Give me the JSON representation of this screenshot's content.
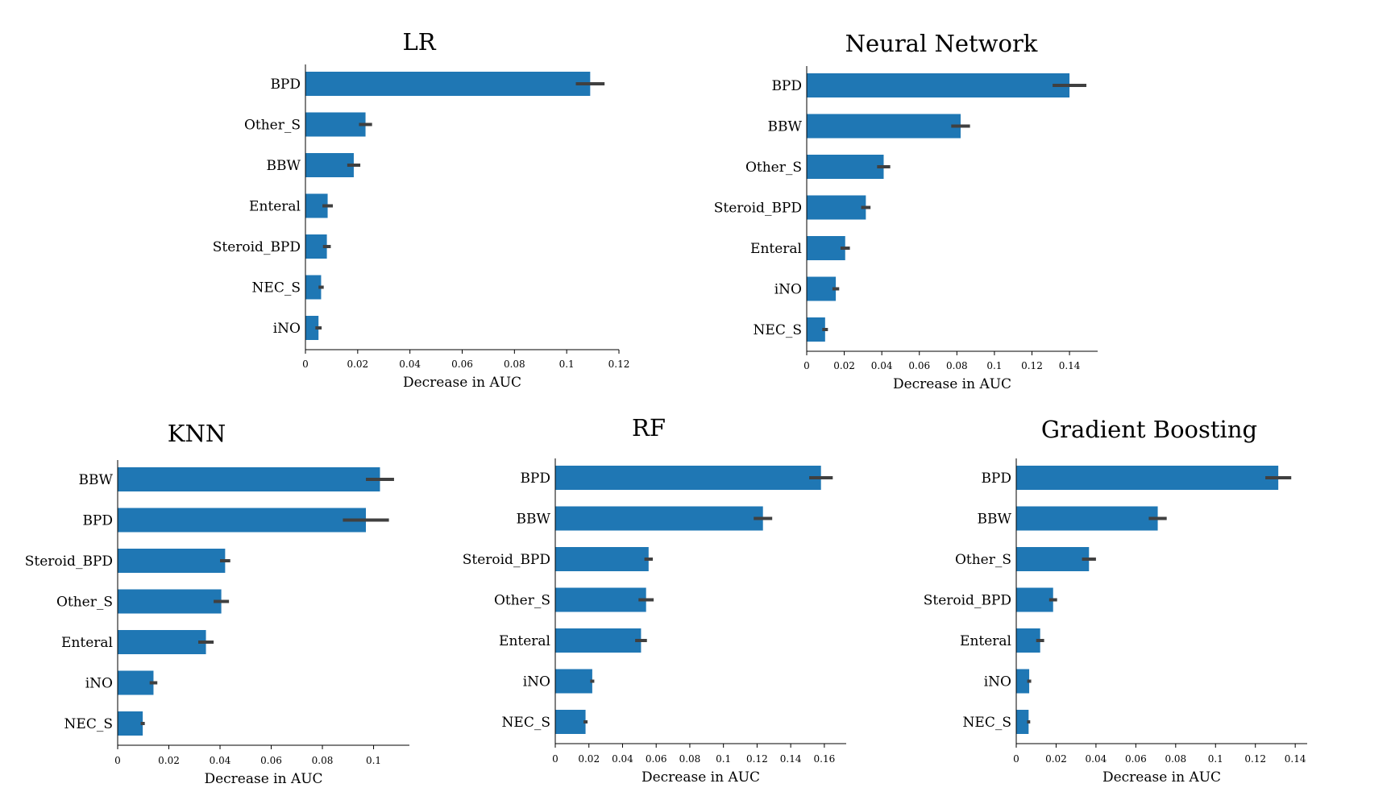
{
  "colors": {
    "bar": "#1f77b4",
    "error_bar": "#404040",
    "axis": "#000000"
  },
  "chart_data": [
    {
      "type": "bar",
      "orientation": "horizontal",
      "title": "LR",
      "xlabel": "Decrease in AUC",
      "ylabel": "",
      "xlim": [
        0,
        0.12
      ],
      "xticks": [
        0,
        0.02,
        0.04,
        0.06,
        0.08,
        0.1,
        0.12
      ],
      "xtick_labels": [
        "0",
        "0.02",
        "0.04",
        "0.06",
        "0.08",
        "0.1",
        "0.12"
      ],
      "categories": [
        "BPD",
        "Other_S",
        "BBW",
        "Enteral",
        "Steroid_BPD",
        "NEC_S",
        "iNO"
      ],
      "values": [
        0.109,
        0.023,
        0.0185,
        0.0085,
        0.0082,
        0.006,
        0.005
      ],
      "errors": [
        0.0055,
        0.0025,
        0.0025,
        0.002,
        0.0015,
        0.001,
        0.0012
      ]
    },
    {
      "type": "bar",
      "orientation": "horizontal",
      "title": "Neural Network",
      "xlabel": "Decrease in AUC",
      "ylabel": "",
      "xlim": [
        0,
        0.155
      ],
      "xticks": [
        0,
        0.02,
        0.04,
        0.06,
        0.08,
        0.1,
        0.12,
        0.14
      ],
      "xtick_labels": [
        "0",
        "0.02",
        "0.04",
        "0.06",
        "0.08",
        "0.1",
        "0.12",
        "0.14"
      ],
      "categories": [
        "BPD",
        "BBW",
        "Other_S",
        "Steroid_BPD",
        "Enteral",
        "iNO",
        "NEC_S"
      ],
      "values": [
        0.14,
        0.082,
        0.041,
        0.0315,
        0.0205,
        0.0155,
        0.0098
      ],
      "errors": [
        0.009,
        0.005,
        0.0035,
        0.0025,
        0.0025,
        0.0018,
        0.0015
      ]
    },
    {
      "type": "bar",
      "orientation": "horizontal",
      "title": "KNN",
      "xlabel": "Decrease in AUC",
      "ylabel": "",
      "xlim": [
        0,
        0.114
      ],
      "xticks": [
        0,
        0.02,
        0.04,
        0.06,
        0.08,
        0.1
      ],
      "xtick_labels": [
        "0",
        "0.02",
        "0.04",
        "0.06",
        "0.08",
        "0.1"
      ],
      "categories": [
        "BBW",
        "BPD",
        "Steroid_BPD",
        "Other_S",
        "Enteral",
        "iNO",
        "NEC_S"
      ],
      "values": [
        0.1025,
        0.097,
        0.042,
        0.0405,
        0.0345,
        0.014,
        0.0098
      ],
      "errors": [
        0.0055,
        0.009,
        0.002,
        0.003,
        0.003,
        0.0015,
        0.0008
      ]
    },
    {
      "type": "bar",
      "orientation": "horizontal",
      "title": "RF",
      "xlabel": "Decrease in AUC",
      "ylabel": "",
      "xlim": [
        0,
        0.173
      ],
      "xticks": [
        0,
        0.02,
        0.04,
        0.06,
        0.08,
        0.1,
        0.12,
        0.14,
        0.16
      ],
      "xtick_labels": [
        "0",
        "0.02",
        "0.04",
        "0.06",
        "0.08",
        "0.1",
        "0.12",
        "0.14",
        "0.16"
      ],
      "categories": [
        "BPD",
        "BBW",
        "Steroid_BPD",
        "Other_S",
        "Enteral",
        "iNO",
        "NEC_S"
      ],
      "values": [
        0.158,
        0.1235,
        0.0555,
        0.054,
        0.051,
        0.022,
        0.018
      ],
      "errors": [
        0.007,
        0.0055,
        0.0025,
        0.0045,
        0.0035,
        0.0012,
        0.0012
      ]
    },
    {
      "type": "bar",
      "orientation": "horizontal",
      "title": "Gradient Boosting",
      "xlabel": "Decrease in AUC",
      "ylabel": "",
      "xlim": [
        0,
        0.146
      ],
      "xticks": [
        0,
        0.02,
        0.04,
        0.06,
        0.08,
        0.1,
        0.12,
        0.14
      ],
      "xtick_labels": [
        "0",
        "0.02",
        "0.04",
        "0.06",
        "0.08",
        "0.1",
        "0.12",
        "0.14"
      ],
      "categories": [
        "BPD",
        "BBW",
        "Other_S",
        "Steroid_BPD",
        "Enteral",
        "iNO",
        "NEC_S"
      ],
      "values": [
        0.1315,
        0.071,
        0.0365,
        0.0185,
        0.012,
        0.0065,
        0.0062
      ],
      "errors": [
        0.0065,
        0.0045,
        0.0035,
        0.002,
        0.002,
        0.001,
        0.0008
      ]
    }
  ]
}
